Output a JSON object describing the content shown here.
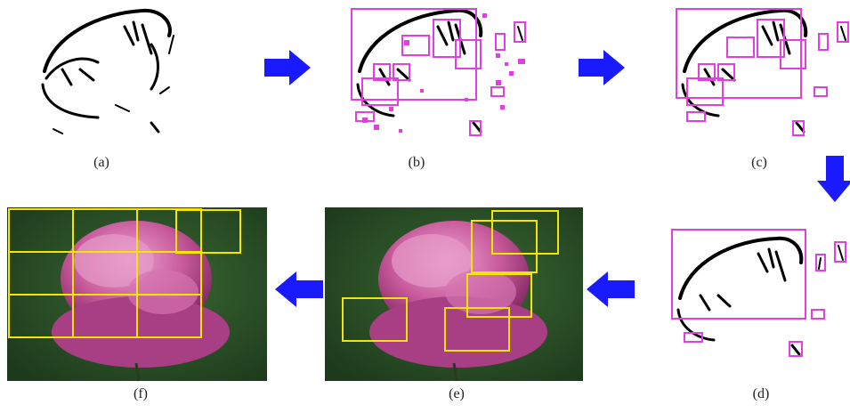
{
  "panels": {
    "a": {
      "caption": "(a)"
    },
    "b": {
      "caption": "(b)"
    },
    "c": {
      "caption": "(c)"
    },
    "d": {
      "caption": "(d)"
    },
    "e": {
      "caption": "(e)"
    },
    "f": {
      "caption": "(f)"
    }
  },
  "colors": {
    "edge": "#000000",
    "box": "#e040e0",
    "window": "#f5e600",
    "arrow": "#1a1aff",
    "background": "#2a4a26",
    "petal": "#c85a9c",
    "petal_light": "#e59acb"
  },
  "icons": {
    "flow_arrows": "arrow-icon"
  }
}
